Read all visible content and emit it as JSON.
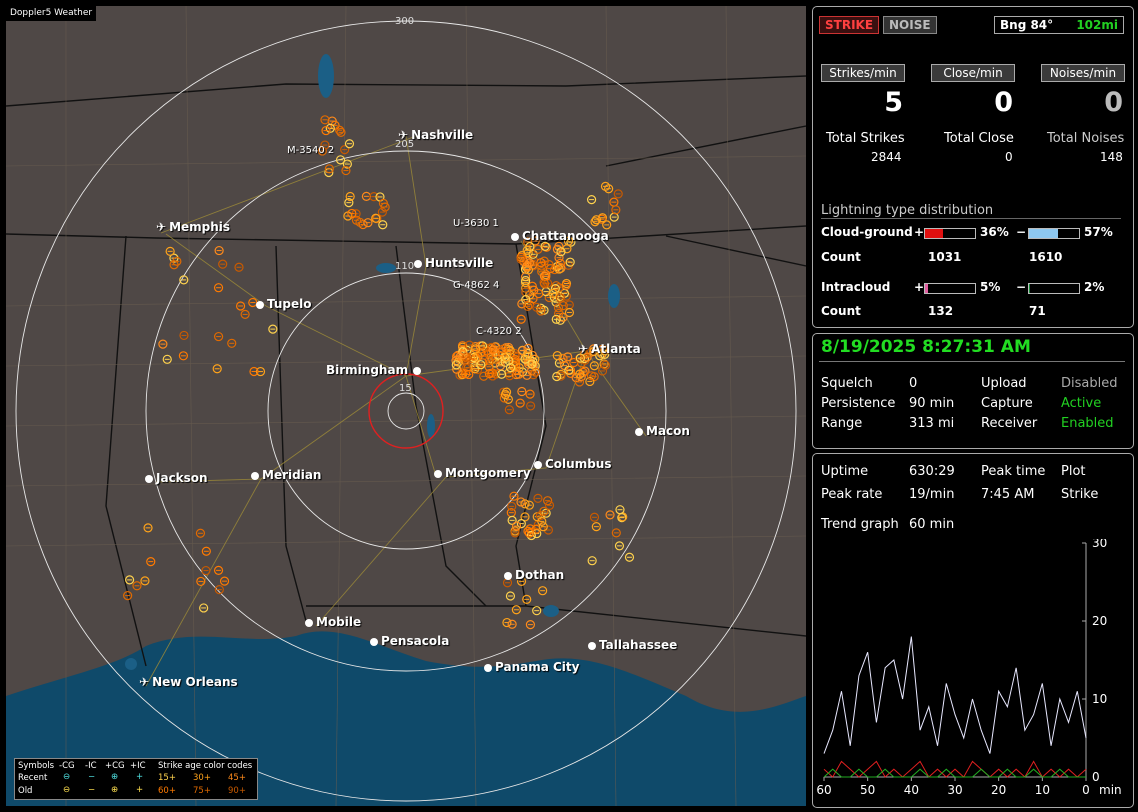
{
  "map": {
    "title": "Doppler5 Weather",
    "ring_labels": [
      "300",
      "205",
      "110",
      "15"
    ],
    "cities": [
      {
        "name": "Nashville",
        "icon": "airport"
      },
      {
        "name": "Memphis",
        "icon": "airport"
      },
      {
        "name": "Chattanooga",
        "icon": "city"
      },
      {
        "name": "Huntsville",
        "icon": "city"
      },
      {
        "name": "Tupelo",
        "icon": "city"
      },
      {
        "name": "Atlanta",
        "icon": "airport"
      },
      {
        "name": "Birmingham",
        "icon": "city"
      },
      {
        "name": "Macon",
        "icon": "city"
      },
      {
        "name": "Jackson",
        "icon": "city"
      },
      {
        "name": "Meridian",
        "icon": "city"
      },
      {
        "name": "Montgomery",
        "icon": "city"
      },
      {
        "name": "Columbus",
        "icon": "city"
      },
      {
        "name": "Dothan",
        "icon": "city"
      },
      {
        "name": "Mobile",
        "icon": "city"
      },
      {
        "name": "Pensacola",
        "icon": "city"
      },
      {
        "name": "Tallahassee",
        "icon": "city"
      },
      {
        "name": "Panama City",
        "icon": "city"
      },
      {
        "name": "New Orleans",
        "icon": "airport"
      }
    ],
    "storm_labels": [
      "M-3540 2",
      "U-3630 1",
      "G-4862 4",
      "C-4320 2"
    ],
    "legend": {
      "symbols_label": "Symbols",
      "h_cg_minus": "-CG",
      "h_ic_minus": "-IC",
      "h_cg_plus": "+CG",
      "h_ic_plus": "+IC",
      "age_label": "Strike age color codes",
      "recent": "Recent",
      "old": "Old",
      "recent_ages": [
        "15+",
        "30+",
        "45+"
      ],
      "old_ages": [
        "60+",
        "75+",
        "90+"
      ],
      "recent_sym": [
        "⊖",
        "−",
        "⊕",
        "+"
      ],
      "old_sym": [
        "⊖",
        "−",
        "⊕",
        "+"
      ],
      "age_colors": [
        "#ffd24d",
        "#ffa31a",
        "#ff8a1a",
        "#ff7a00",
        "#e06a00",
        "#c85a00"
      ]
    }
  },
  "status": {
    "strike_tag": "STRIKE",
    "noise_tag": "NOISE",
    "bearing": "Bng 84°",
    "distance": "102mi",
    "strikes_per_min_label": "Strikes/min",
    "close_per_min_label": "Close/min",
    "noises_per_min_label": "Noises/min",
    "strikes_per_min": "5",
    "close_per_min": "0",
    "noises_per_min": "0",
    "total_strikes_label": "Total Strikes",
    "total_close_label": "Total Close",
    "total_noises_label": "Total Noises",
    "total_strikes": "2844",
    "total_close": "0",
    "total_noises": "148",
    "dist_title": "Lightning type distribution",
    "cg_label": "Cloud-ground",
    "cg_plus": "+",
    "cg_plus_pct": "36%",
    "cg_minus": "−",
    "cg_minus_pct": "57%",
    "count_label": "Count",
    "cg_plus_count": "1031",
    "cg_minus_count": "1610",
    "ic_label": "Intracloud",
    "ic_plus": "+",
    "ic_plus_pct": "5%",
    "ic_minus": "−",
    "ic_minus_pct": "2%",
    "ic_plus_count": "132",
    "ic_minus_count": "71",
    "cg_plus_frac": 0.36,
    "cg_minus_frac": 0.57,
    "ic_plus_frac": 0.05,
    "ic_minus_frac": 0.02,
    "colors": {
      "cg_plus": "#e01010",
      "cg_minus": "#8ec8f0",
      "ic_plus": "#e060a0",
      "ic_minus": "#1a8a3a",
      "distance": "#22d022",
      "strike_tag": "#ff4040"
    }
  },
  "info": {
    "datetime": "8/19/2025 8:27:31 AM",
    "squelch_label": "Squelch",
    "squelch": "0",
    "persistence_label": "Persistence",
    "persistence": "90 min",
    "range_label": "Range",
    "range": "313 mi",
    "upload_label": "Upload",
    "upload": "Disabled",
    "capture_label": "Capture",
    "capture": "Active",
    "receiver_label": "Receiver",
    "receiver": "Enabled"
  },
  "trend": {
    "uptime_label": "Uptime",
    "uptime": "630:29",
    "peak_time_label": "Peak time",
    "peak_time": "7:45 AM",
    "plot_label": "Plot",
    "plot": "Strike",
    "peak_rate_label": "Peak rate",
    "peak_rate": "19/min",
    "trend_graph_label": "Trend graph",
    "trend_graph": "60 min",
    "y_ticks": [
      "30",
      "20",
      "10",
      "0"
    ],
    "x_ticks": [
      "60",
      "50",
      "40",
      "30",
      "20",
      "10",
      "0"
    ],
    "x_unit": "min"
  },
  "chart_data": {
    "type": "line",
    "xlabel": "min",
    "ylabel": "",
    "xlim": [
      60,
      0
    ],
    "ylim": [
      0,
      30
    ],
    "x": [
      60,
      58,
      56,
      54,
      52,
      50,
      48,
      46,
      44,
      42,
      40,
      38,
      36,
      34,
      32,
      30,
      28,
      26,
      24,
      22,
      20,
      18,
      16,
      14,
      12,
      10,
      8,
      6,
      4,
      2,
      0
    ],
    "series": [
      {
        "values": [
          3,
          6,
          11,
          4,
          13,
          16,
          7,
          14,
          15,
          10,
          18,
          6,
          9,
          4,
          12,
          8,
          5,
          10,
          6,
          3,
          11,
          9,
          14,
          6,
          8,
          12,
          4,
          10,
          7,
          11,
          5
        ]
      },
      {
        "values": [
          1,
          0,
          2,
          1,
          0,
          1,
          2,
          0,
          1,
          0,
          1,
          2,
          0,
          1,
          0,
          1,
          0,
          2,
          1,
          0,
          1,
          0,
          1,
          0,
          2,
          0,
          1,
          0,
          1,
          0,
          1
        ]
      },
      {
        "values": [
          0,
          1,
          0,
          0,
          1,
          0,
          0,
          1,
          0,
          0,
          0,
          1,
          0,
          0,
          1,
          0,
          0,
          0,
          1,
          0,
          0,
          1,
          0,
          0,
          1,
          0,
          0,
          1,
          0,
          0,
          0
        ]
      }
    ]
  }
}
